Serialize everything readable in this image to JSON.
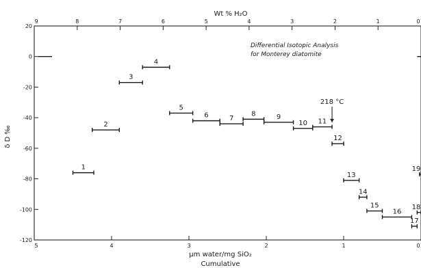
{
  "chart_data": {
    "type": "bar",
    "title": "Differential Isotopic Analysis",
    "subtitle": "for Monterey diatomite",
    "xlabel_bottom": "μm water/mg SiO₂",
    "xlabel_bottom_sub": "Cumulative",
    "xlabel_top": "Wt % H₂O",
    "ylabel": "δ D ‰",
    "xlim_bottom": [
      5,
      0
    ],
    "xlim_top": [
      9,
      0
    ],
    "ylim": [
      -120,
      20
    ],
    "x_ticks_bottom": [
      "5",
      "4",
      "3",
      "2",
      "1",
      "0"
    ],
    "x_ticks_top": [
      "9",
      "8",
      "7",
      "6",
      "5",
      "4",
      "3",
      "2",
      "1",
      "0"
    ],
    "y_ticks": [
      "20",
      "0",
      "-20",
      "-40",
      "-60",
      "-80",
      "-100",
      "-120"
    ],
    "annotation": {
      "text": "218 °C",
      "x": 1.15,
      "y_from": -35,
      "y_to": -43
    },
    "zero_marks": [
      {
        "x0": 4.95,
        "x1": 4.77,
        "y": 0
      },
      {
        "x0": 0.05,
        "x1": 0.0,
        "y": 0
      }
    ],
    "steps": [
      {
        "label": "1",
        "x0": 4.5,
        "x1": 4.23,
        "y": -76
      },
      {
        "label": "2",
        "x0": 4.25,
        "x1": 3.9,
        "y": -48
      },
      {
        "label": "3",
        "x0": 3.9,
        "x1": 3.6,
        "y": -17
      },
      {
        "label": "4",
        "x0": 3.6,
        "x1": 3.25,
        "y": -7
      },
      {
        "label": "5",
        "x0": 3.25,
        "x1": 2.95,
        "y": -37
      },
      {
        "label": "6",
        "x0": 2.95,
        "x1": 2.6,
        "y": -42
      },
      {
        "label": "7",
        "x0": 2.6,
        "x1": 2.3,
        "y": -44
      },
      {
        "label": "8",
        "x0": 2.3,
        "x1": 2.03,
        "y": -41
      },
      {
        "label": "9",
        "x0": 2.03,
        "x1": 1.65,
        "y": -43
      },
      {
        "label": "10",
        "x0": 1.65,
        "x1": 1.4,
        "y": -47
      },
      {
        "label": "11",
        "x0": 1.4,
        "x1": 1.15,
        "y": -46
      },
      {
        "label": "12",
        "x0": 1.15,
        "x1": 1.0,
        "y": -57
      },
      {
        "label": "13",
        "x0": 1.0,
        "x1": 0.8,
        "y": -81
      },
      {
        "label": "14",
        "x0": 0.8,
        "x1": 0.7,
        "y": -92
      },
      {
        "label": "15",
        "x0": 0.7,
        "x1": 0.5,
        "y": -101
      },
      {
        "label": "16",
        "x0": 0.5,
        "x1": 0.12,
        "y": -105
      },
      {
        "label": "17",
        "x0": 0.12,
        "x1": 0.05,
        "y": -111
      },
      {
        "label": "18",
        "x0": 0.05,
        "x1": 0.0,
        "y": -102
      },
      {
        "label": "19",
        "x0": 0.02,
        "x1": 0.0,
        "y": -77
      }
    ]
  }
}
